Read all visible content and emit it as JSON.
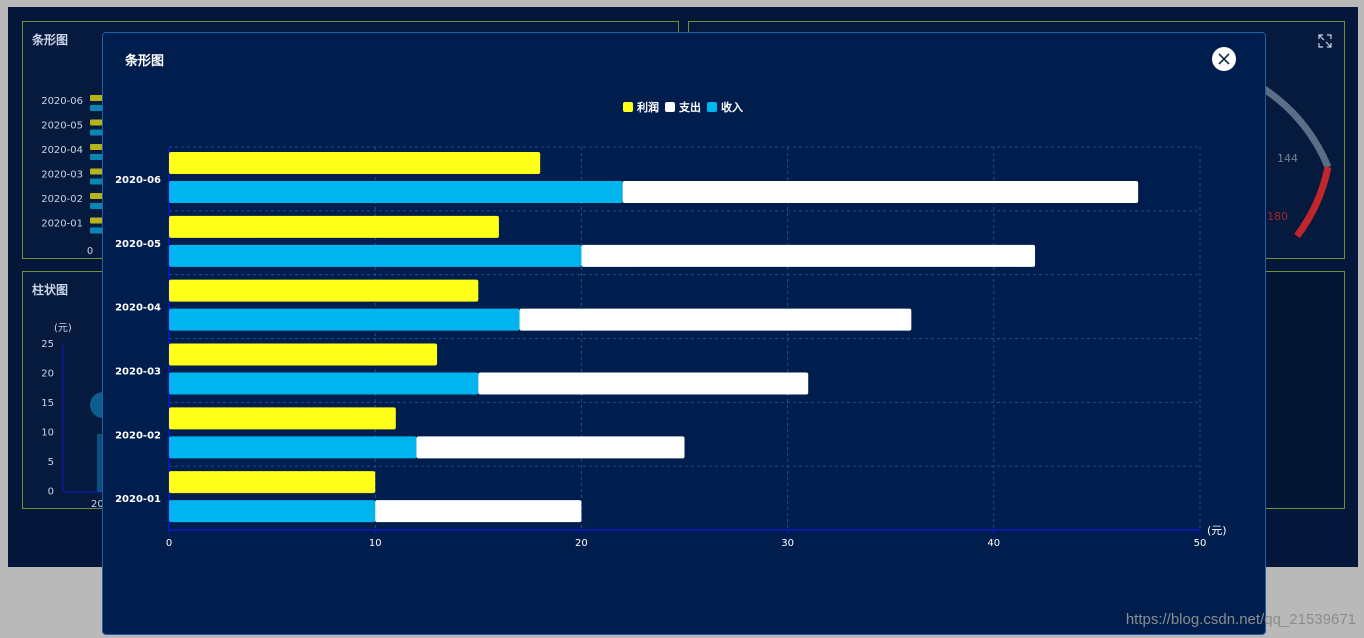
{
  "dashboard": {
    "top_left_panel": {
      "title": "条形图",
      "categories": [
        "2020-06",
        "2020-05",
        "2020-04",
        "2020-03",
        "2020-02",
        "2020-01"
      ],
      "axis_zero": "0"
    },
    "bottom_left_panel": {
      "title": "柱状图",
      "unit": "(元)",
      "y_ticks": [
        "25",
        "20",
        "15",
        "10",
        "5",
        "0"
      ],
      "x_first_label": "20"
    },
    "gauge_panel": {
      "tick_labels": [
        "144",
        "180"
      ]
    }
  },
  "modal": {
    "title": "条形图",
    "close_icon": "close-icon"
  },
  "colors": {
    "profit": "#ffff1a",
    "expense": "#ffffff",
    "income": "#00b4ef",
    "grid": "#1e4f8c",
    "axis": "#1414c8"
  },
  "chart_data": {
    "type": "bar",
    "orientation": "horizontal",
    "categories": [
      "2020-01",
      "2020-02",
      "2020-03",
      "2020-04",
      "2020-05",
      "2020-06"
    ],
    "series": [
      {
        "name": "利润",
        "values": [
          10,
          11,
          13,
          15,
          16,
          18
        ]
      },
      {
        "name": "收入",
        "values": [
          10,
          12,
          15,
          17,
          20,
          22
        ],
        "stack": "total"
      },
      {
        "name": "支出",
        "values": [
          10,
          13,
          16,
          19,
          22,
          25
        ],
        "stack": "total"
      }
    ],
    "legend": [
      "利润",
      "支出",
      "收入"
    ],
    "legend_position": "top-center",
    "x_unit": "(元)",
    "x_ticks": [
      "0",
      "10",
      "20",
      "30",
      "40",
      "50"
    ],
    "xlim": [
      0,
      50
    ],
    "grid": true
  },
  "watermark": "https://blog.csdn.net/qq_21539671"
}
